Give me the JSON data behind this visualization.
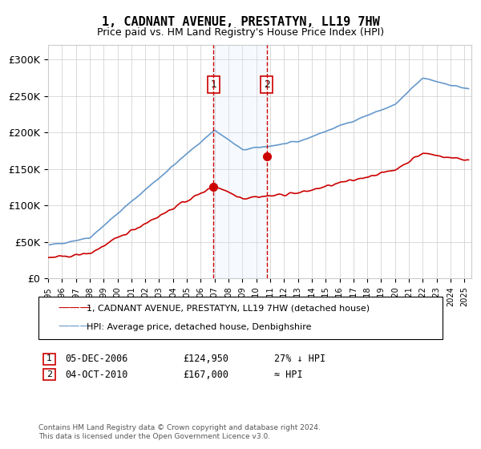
{
  "title": "1, CADNANT AVENUE, PRESTATYN, LL19 7HW",
  "subtitle": "Price paid vs. HM Land Registry's House Price Index (HPI)",
  "ylabel": "",
  "ylim": [
    0,
    320000
  ],
  "yticks": [
    0,
    50000,
    100000,
    150000,
    200000,
    250000,
    300000
  ],
  "ytick_labels": [
    "£0",
    "£50K",
    "£100K",
    "£150K",
    "£200K",
    "£250K",
    "£300K"
  ],
  "background_color": "#ffffff",
  "plot_bg_color": "#ffffff",
  "grid_color": "#cccccc",
  "legend_line1_color": "#cc0000",
  "legend_line2_color": "#6699cc",
  "sale1_date": 2006.92,
  "sale1_price": 124950,
  "sale1_label": "1",
  "sale2_date": 2010.75,
  "sale2_price": 167000,
  "sale2_label": "2",
  "shade_color": "#ddeeff",
  "vline_color": "#cc0000",
  "vline_style": "--",
  "footer_text": "Contains HM Land Registry data © Crown copyright and database right 2024.\nThis data is licensed under the Open Government Licence v3.0.",
  "legend_entry1": "1, CADNANT AVENUE, PRESTATYN, LL19 7HW (detached house)",
  "legend_entry2": "HPI: Average price, detached house, Denbighshire",
  "table_row1": [
    "1",
    "05-DEC-2006",
    "£124,950",
    "27% ↓ HPI"
  ],
  "table_row2": [
    "2",
    "04-OCT-2010",
    "£167,000",
    "≈ HPI"
  ]
}
